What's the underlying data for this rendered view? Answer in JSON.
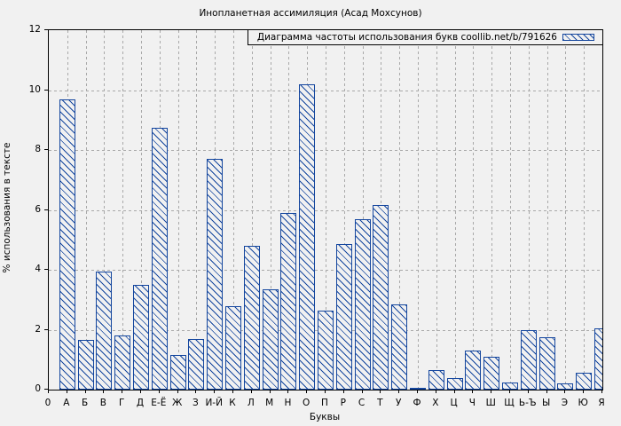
{
  "title": "Инопланетная ассимиляция (Асад Мохсунов)",
  "legend": {
    "label": "Диаграмма частоты использования букв coollib.net/b/791626",
    "swatch": "hatched-bar-sample"
  },
  "axes": {
    "x_label": "Буквы",
    "y_label": "% использования в тексте",
    "x_origin_label": "0",
    "y_ticks": [
      0,
      2,
      4,
      6,
      8,
      10,
      12
    ]
  },
  "colors": {
    "bar": "#14469e",
    "background": "#f1f1f1",
    "grid": "#a9a9a9",
    "axis": "#000000"
  },
  "chart_data": {
    "type": "bar",
    "title": "Инопланетная ассимиляция (Асад Мохсунов)",
    "xlabel": "Буквы",
    "ylabel": "% использования в тексте",
    "ylim": [
      0,
      12
    ],
    "grid": true,
    "legend_position": "top-right",
    "legend": [
      "Диаграмма частоты использования букв coollib.net/b/791626"
    ],
    "bar_style": "blue diagonal hatch",
    "categories": [
      "А",
      "Б",
      "В",
      "Г",
      "Д",
      "Е-Ё",
      "Ж",
      "З",
      "И-Й",
      "К",
      "Л",
      "М",
      "Н",
      "О",
      "П",
      "Р",
      "С",
      "Т",
      "У",
      "Ф",
      "Х",
      "Ц",
      "Ч",
      "Ш",
      "Щ",
      "Ь-Ъ",
      "Ы",
      "Э",
      "Ю",
      "Я"
    ],
    "values": [
      9.7,
      1.65,
      3.95,
      1.8,
      3.5,
      8.75,
      1.15,
      1.7,
      7.7,
      2.8,
      4.8,
      3.35,
      5.9,
      10.2,
      2.65,
      4.85,
      5.7,
      6.15,
      2.85,
      0.05,
      0.65,
      0.4,
      1.3,
      1.1,
      0.25,
      2.0,
      1.75,
      0.2,
      0.55,
      2.05
    ]
  }
}
